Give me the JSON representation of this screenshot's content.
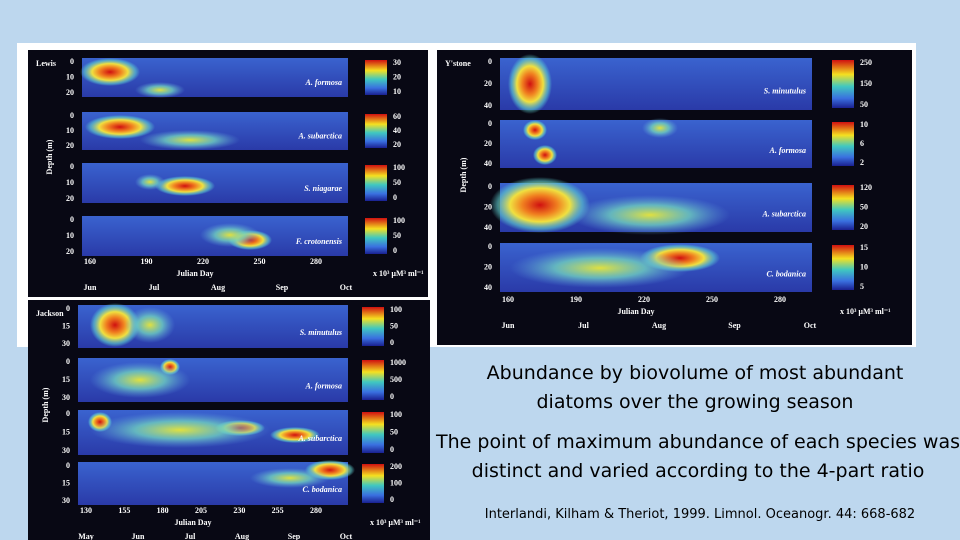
{
  "panels": [
    {
      "lake": "Lewis",
      "y_label": "Depth (m)",
      "x_label": "Julian Day",
      "unit": "x 10³ µM³ ml⁻¹",
      "x_ticks": [
        "160",
        "190",
        "220",
        "250",
        "280"
      ],
      "months": [
        "Jun",
        "Jul",
        "Aug",
        "Sep",
        "Oct"
      ],
      "rows": [
        {
          "species": "A. formosa",
          "depth_ticks": [
            "0",
            "10",
            "20"
          ],
          "scale_ticks": [
            "30",
            "20",
            "10"
          ]
        },
        {
          "species": "A. subarctica",
          "depth_ticks": [
            "0",
            "10",
            "20"
          ],
          "scale_ticks": [
            "60",
            "40",
            "20"
          ]
        },
        {
          "species": "S. niagarae",
          "depth_ticks": [
            "0",
            "10",
            "20"
          ],
          "scale_ticks": [
            "100",
            "50",
            "0"
          ]
        },
        {
          "species": "F. crotonensis",
          "depth_ticks": [
            "0",
            "10",
            "20"
          ],
          "scale_ticks": [
            "100",
            "50",
            "0"
          ]
        }
      ]
    },
    {
      "lake": "Y'stone",
      "y_label": "Depth (m)",
      "x_label": "Julian Day",
      "unit": "x 10³ µM³ ml⁻¹",
      "x_ticks": [
        "160",
        "190",
        "220",
        "250",
        "280"
      ],
      "months": [
        "Jun",
        "Jul",
        "Aug",
        "Sep",
        "Oct"
      ],
      "rows": [
        {
          "species": "S. minutulus",
          "depth_ticks": [
            "0",
            "20",
            "40"
          ],
          "scale_ticks": [
            "250",
            "150",
            "50"
          ]
        },
        {
          "species": "A. formosa",
          "depth_ticks": [
            "0",
            "20",
            "40"
          ],
          "scale_ticks": [
            "10",
            "6",
            "2"
          ]
        },
        {
          "species": "A. subarctica",
          "depth_ticks": [
            "0",
            "20",
            "40"
          ],
          "scale_ticks": [
            "120",
            "50",
            "20"
          ]
        },
        {
          "species": "C. bodanica",
          "depth_ticks": [
            "0",
            "20",
            "40"
          ],
          "scale_ticks": [
            "15",
            "10",
            "5"
          ]
        }
      ]
    },
    {
      "lake": "Jackson",
      "y_label": "Depth (m)",
      "x_label": "Julian Day",
      "unit": "x 10³ µM³ ml⁻¹",
      "x_ticks": [
        "130",
        "155",
        "180",
        "205",
        "230",
        "255",
        "280"
      ],
      "months": [
        "May",
        "Jun",
        "Jul",
        "Aug",
        "Sep",
        "Oct"
      ],
      "rows": [
        {
          "species": "S. minutulus",
          "depth_ticks": [
            "0",
            "15",
            "30"
          ],
          "scale_ticks": [
            "100",
            "50",
            "0"
          ]
        },
        {
          "species": "A. formosa",
          "depth_ticks": [
            "0",
            "15",
            "30"
          ],
          "scale_ticks": [
            "1000",
            "500",
            "0"
          ]
        },
        {
          "species": "A. subarctica",
          "depth_ticks": [
            "0",
            "15",
            "30"
          ],
          "scale_ticks": [
            "100",
            "50",
            "0"
          ]
        },
        {
          "species": "C. bodanica",
          "depth_ticks": [
            "0",
            "15",
            "30"
          ],
          "scale_ticks": [
            "200",
            "100",
            "0"
          ]
        }
      ]
    }
  ],
  "caption": {
    "title": "Abundance by biovolume of most abundant diatoms over the growing season",
    "note": "The point of maximum abundance of each species was distinct and varied according to the 4-part ratio",
    "citation": "Interlandi, Kilham & Theriot, 1999.  Limnol. Oceanogr.  44: 668-682"
  }
}
